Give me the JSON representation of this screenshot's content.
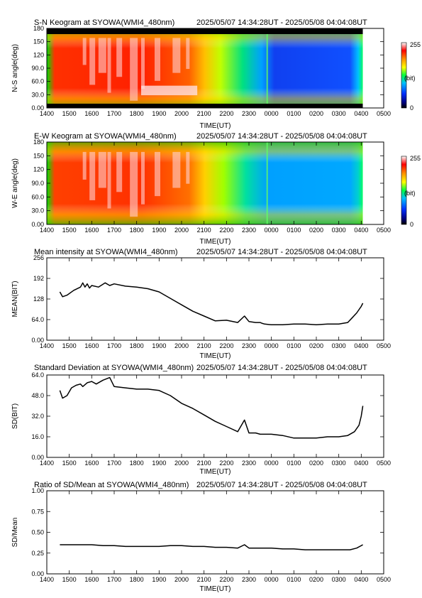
{
  "chart_data": [
    {
      "type": "heatmap",
      "title": "S-N Keogram at SYOWA(WMI4_480nm)",
      "time_range": "2025/05/07 14:34:28UT - 2025/05/08 04:04:08UT",
      "xlabel": "TIME(UT)",
      "ylabel": "N-S angle(deg)",
      "x_ticks": [
        "1400",
        "1500",
        "1600",
        "1700",
        "1800",
        "1900",
        "2000",
        "2100",
        "2200",
        "2300",
        "0000",
        "0100",
        "0200",
        "0300",
        "0400",
        "0500"
      ],
      "y_ticks": [
        "0.00",
        "30.0",
        "60.0",
        "90.0",
        "120",
        "150",
        "180"
      ],
      "ylim": [
        0,
        180
      ],
      "colorbar": {
        "min_label": "0",
        "max_label": "255",
        "unit_label": "(bit)"
      }
    },
    {
      "type": "heatmap",
      "title": "E-W Keogram at SYOWA(WMI4_480nm)",
      "time_range": "2025/05/07 14:34:28UT - 2025/05/08 04:04:08UT",
      "xlabel": "TIME(UT)",
      "ylabel": "W-E angle(deg)",
      "x_ticks": [
        "1400",
        "1500",
        "1600",
        "1700",
        "1800",
        "1900",
        "2000",
        "2100",
        "2200",
        "2300",
        "0000",
        "0100",
        "0200",
        "0300",
        "0400",
        "0500"
      ],
      "y_ticks": [
        "0.00",
        "30.0",
        "60.0",
        "90.0",
        "120",
        "150",
        "180"
      ],
      "ylim": [
        0,
        180
      ],
      "colorbar": {
        "min_label": "0",
        "max_label": "255",
        "unit_label": "(bit)"
      }
    },
    {
      "type": "line",
      "title": "Mean intensity at SYOWA(WMI4_480nm)",
      "time_range": "2025/05/07 14:34:28UT - 2025/05/08 04:04:08UT",
      "xlabel": "TIME(UT)",
      "ylabel": "MEAN(BIT)",
      "x_ticks": [
        "1400",
        "1500",
        "1600",
        "1700",
        "1800",
        "1900",
        "2000",
        "2100",
        "2200",
        "2300",
        "0000",
        "0100",
        "0200",
        "0300",
        "0400",
        "0500"
      ],
      "y_ticks": [
        "0.00",
        "64.0",
        "128",
        "192",
        "256"
      ],
      "ylim": [
        0,
        256
      ],
      "x_hours_since_1400": [
        0.58,
        0.7,
        0.9,
        1.2,
        1.5,
        1.6,
        1.7,
        1.8,
        1.9,
        2.0,
        2.3,
        2.6,
        2.8,
        3.0,
        3.5,
        4.0,
        4.5,
        5.0,
        5.5,
        6.0,
        6.5,
        7.0,
        7.5,
        8.0,
        8.5,
        8.8,
        9.0,
        9.3,
        9.5,
        9.6,
        9.7,
        10.0,
        10.5,
        11.0,
        11.5,
        12.0,
        12.5,
        13.0,
        13.4,
        13.6,
        13.8,
        14.0,
        14.07
      ],
      "values": [
        150,
        135,
        140,
        155,
        165,
        178,
        165,
        175,
        162,
        170,
        165,
        178,
        170,
        175,
        168,
        165,
        160,
        150,
        130,
        110,
        90,
        75,
        60,
        62,
        55,
        75,
        58,
        55,
        55,
        52,
        50,
        48,
        48,
        50,
        50,
        48,
        50,
        50,
        55,
        70,
        85,
        105,
        115
      ]
    },
    {
      "type": "line",
      "title": "Standard Deviation at SYOWA(WMI4_480nm)",
      "time_range": "2025/05/07 14:34:28UT - 2025/05/08 04:04:08UT",
      "xlabel": "TIME(UT)",
      "ylabel": "SD(BIT)",
      "x_ticks": [
        "1400",
        "1500",
        "1600",
        "1700",
        "1800",
        "1900",
        "2000",
        "2100",
        "2200",
        "2300",
        "0000",
        "0100",
        "0200",
        "0300",
        "0400",
        "0500"
      ],
      "y_ticks": [
        "0.00",
        "16.0",
        "32.0",
        "48.0",
        "64.0"
      ],
      "ylim": [
        0,
        64
      ],
      "x_hours_since_1400": [
        0.58,
        0.7,
        0.9,
        1.1,
        1.3,
        1.5,
        1.6,
        1.8,
        2.0,
        2.2,
        2.5,
        2.8,
        3.0,
        3.5,
        4.0,
        4.5,
        5.0,
        5.5,
        6.0,
        6.5,
        7.0,
        7.5,
        8.0,
        8.5,
        8.8,
        9.0,
        9.3,
        9.5,
        10.0,
        10.5,
        11.0,
        11.5,
        12.0,
        12.5,
        13.0,
        13.4,
        13.7,
        13.9,
        14.0,
        14.07
      ],
      "values": [
        52,
        46,
        48,
        54,
        56,
        57,
        55,
        58,
        59,
        57,
        60,
        62,
        55,
        54,
        53,
        53,
        52,
        48,
        42,
        38,
        33,
        28,
        24,
        20,
        29,
        19,
        19,
        18,
        18,
        17,
        15,
        15,
        15,
        16,
        16,
        17,
        20,
        25,
        32,
        40
      ]
    },
    {
      "type": "line",
      "title": "Ratio of SD/Mean at SYOWA(WMI4_480nm)",
      "time_range": "2025/05/07 14:34:28UT - 2025/05/08 04:04:08UT",
      "xlabel": "TIME(UT)",
      "ylabel": "SD/Mean",
      "x_ticks": [
        "1400",
        "1500",
        "1600",
        "1700",
        "1800",
        "1900",
        "2000",
        "2100",
        "2200",
        "2300",
        "0000",
        "0100",
        "0200",
        "0300",
        "0400",
        "0500"
      ],
      "y_ticks": [
        "0.00",
        "0.25",
        "0.50",
        "0.75",
        "1.00"
      ],
      "ylim": [
        0,
        1.0
      ],
      "x_hours_since_1400": [
        0.58,
        1.0,
        1.5,
        2.0,
        2.5,
        3.0,
        3.5,
        4.0,
        4.5,
        5.0,
        5.5,
        6.0,
        6.5,
        7.0,
        7.5,
        8.0,
        8.5,
        8.8,
        9.0,
        9.5,
        10.0,
        10.5,
        11.0,
        11.5,
        12.0,
        12.5,
        13.0,
        13.5,
        13.8,
        14.07
      ],
      "values": [
        0.35,
        0.35,
        0.35,
        0.35,
        0.34,
        0.34,
        0.33,
        0.33,
        0.33,
        0.33,
        0.34,
        0.34,
        0.33,
        0.33,
        0.32,
        0.32,
        0.31,
        0.35,
        0.31,
        0.31,
        0.31,
        0.3,
        0.3,
        0.29,
        0.29,
        0.29,
        0.29,
        0.29,
        0.31,
        0.35
      ]
    }
  ]
}
